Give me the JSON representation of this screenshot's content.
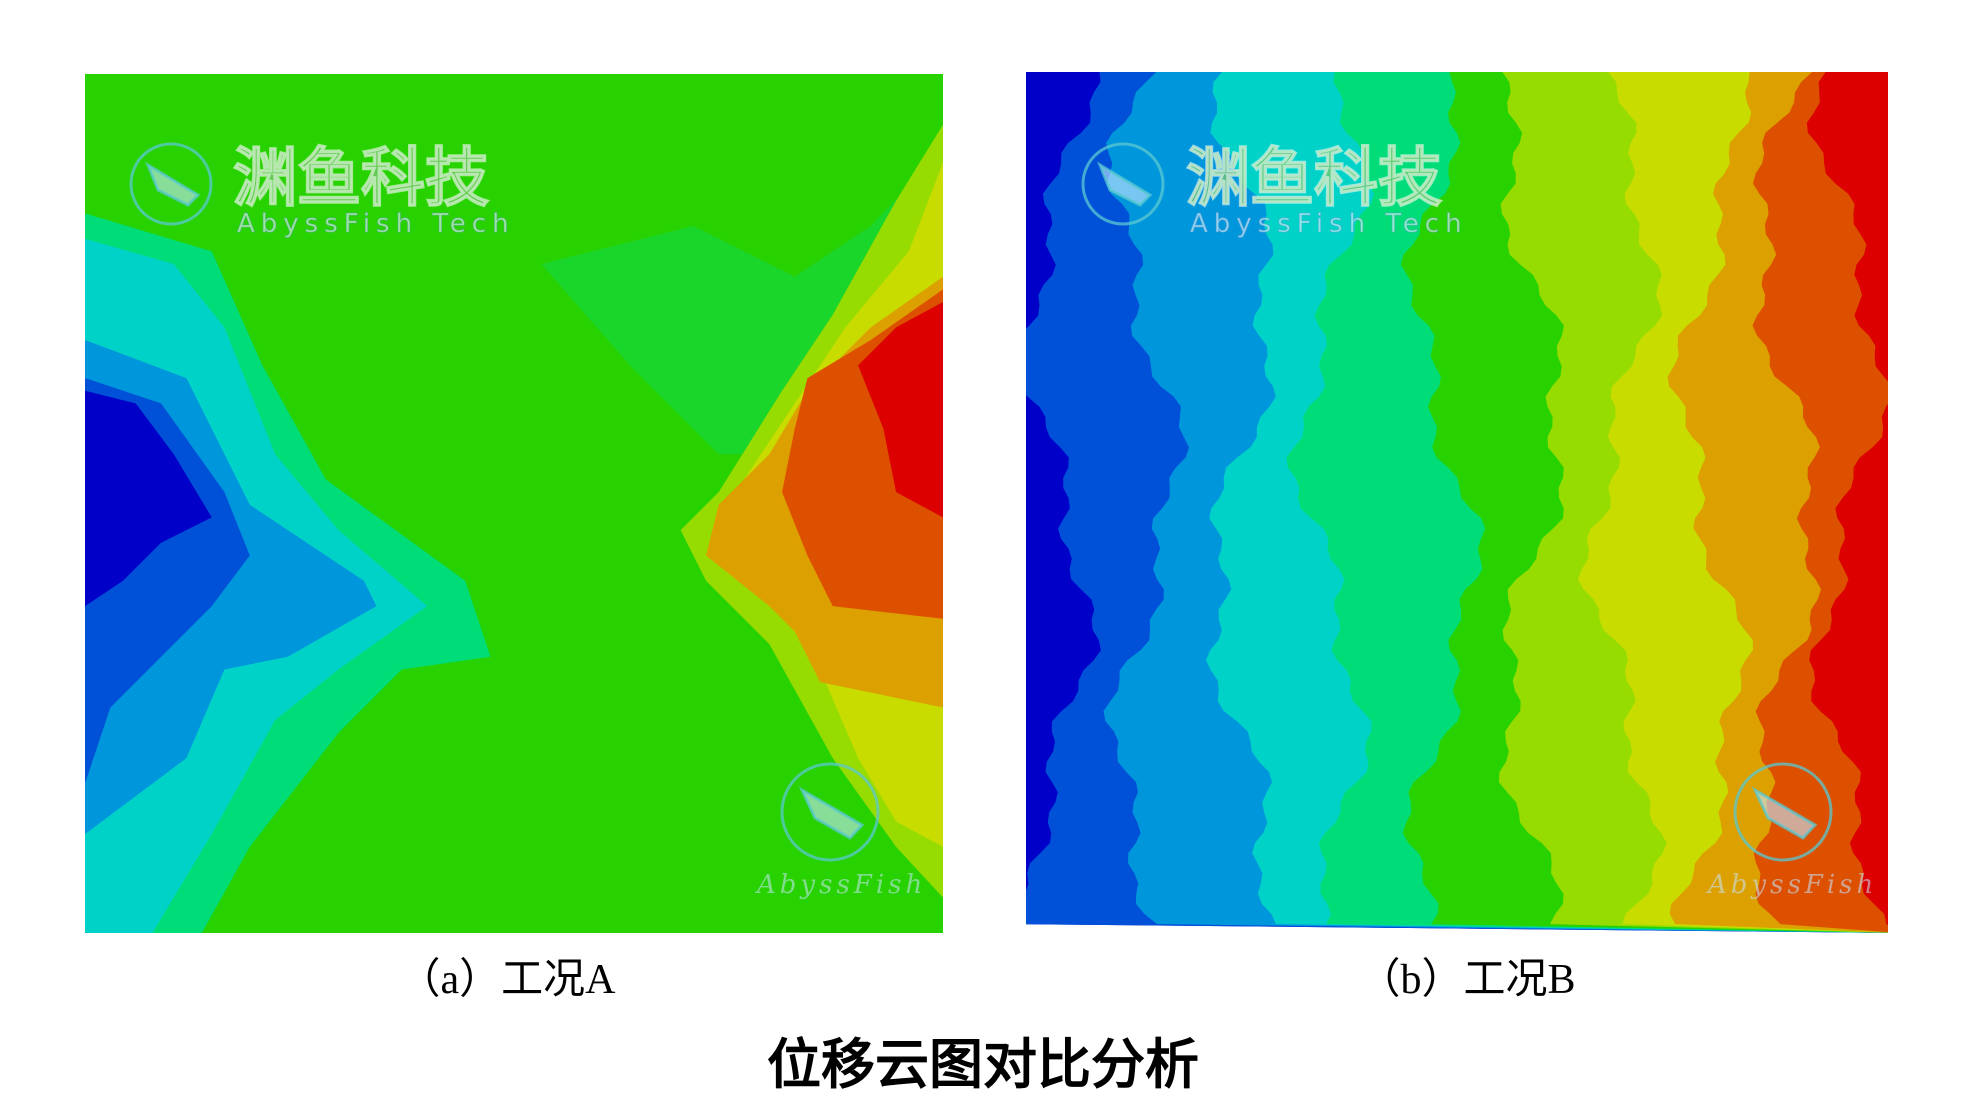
{
  "panel_a": {
    "watermark": {
      "title": "渊鱼科技",
      "subtitle": "AbyssFish Tech",
      "corner": "AbyssFish"
    },
    "caption": "（a）工况A"
  },
  "panel_b": {
    "watermark": {
      "title": "渊鱼科技",
      "subtitle": "AbyssFish Tech",
      "corner": "AbyssFish"
    },
    "caption": "（b）工况B"
  },
  "title": "位移云图对比分析"
}
